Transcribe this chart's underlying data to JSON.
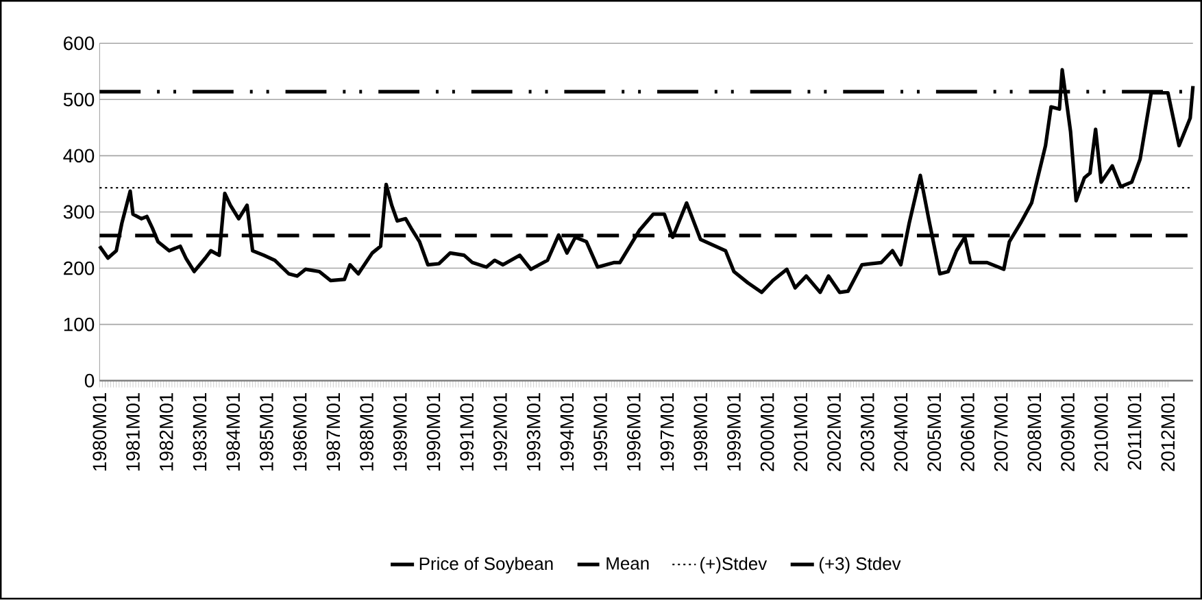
{
  "chart_data": {
    "type": "line",
    "x": [
      "1980-01",
      "1980-04",
      "1980-07",
      "1980-09",
      "1980-12",
      "1981-01",
      "1981-04",
      "1981-06",
      "1981-08",
      "1981-10",
      "1982-02",
      "1982-06",
      "1982-08",
      "1982-11",
      "1983-03",
      "1983-05",
      "1983-08",
      "1983-10",
      "1983-12",
      "1984-03",
      "1984-06",
      "1984-08",
      "1984-12",
      "1985-04",
      "1985-09",
      "1985-12",
      "1986-03",
      "1986-08",
      "1986-12",
      "1987-05",
      "1987-07",
      "1987-10",
      "1988-03",
      "1988-06",
      "1988-08",
      "1988-10",
      "1988-12",
      "1989-03",
      "1989-05",
      "1989-08",
      "1989-11",
      "1990-03",
      "1990-07",
      "1990-12",
      "1991-03",
      "1991-08",
      "1991-11",
      "1992-02",
      "1992-08",
      "1992-12",
      "1993-06",
      "1993-10",
      "1994-01",
      "1994-04",
      "1994-08",
      "1994-12",
      "1995-06",
      "1995-08",
      "1996-03",
      "1996-08",
      "1996-12",
      "1997-03",
      "1997-08",
      "1998-01",
      "1998-10",
      "1999-01",
      "1999-06",
      "1999-11",
      "2000-03",
      "2000-08",
      "2000-11",
      "2001-03",
      "2001-08",
      "2001-11",
      "2002-03",
      "2002-06",
      "2002-11",
      "2003-06",
      "2003-10",
      "2004-01",
      "2004-04",
      "2004-08",
      "2004-11",
      "2005-03",
      "2005-06",
      "2005-09",
      "2005-12",
      "2006-02",
      "2006-08",
      "2007-02",
      "2007-04",
      "2007-08",
      "2007-12",
      "2008-05",
      "2008-07",
      "2008-10",
      "2008-11",
      "2009-02",
      "2009-04",
      "2009-07",
      "2009-09",
      "2009-11",
      "2010-01",
      "2010-05",
      "2010-08",
      "2010-12",
      "2011-03",
      "2011-07",
      "2012-01",
      "2012-05",
      "2012-09",
      "2012-10"
    ],
    "series": [
      {
        "name": "Price of Soybean",
        "color": "#000000",
        "line_style": "solid",
        "values": [
          239,
          218,
          231,
          280,
          337,
          296,
          288,
          292,
          271,
          247,
          231,
          239,
          218,
          194,
          218,
          231,
          223,
          333,
          312,
          288,
          312,
          231,
          223,
          214,
          190,
          186,
          198,
          194,
          178,
          180,
          206,
          190,
          227,
          239,
          349,
          312,
          284,
          288,
          271,
          247,
          206,
          208,
          227,
          223,
          210,
          202,
          214,
          206,
          223,
          198,
          214,
          259,
          227,
          255,
          247,
          202,
          210,
          210,
          267,
          296,
          296,
          255,
          316,
          251,
          231,
          194,
          174,
          157,
          178,
          198,
          165,
          186,
          157,
          186,
          157,
          159,
          206,
          210,
          231,
          206,
          280,
          365,
          288,
          190,
          194,
          231,
          255,
          210,
          210,
          198,
          247,
          280,
          316,
          418,
          487,
          483,
          553,
          443,
          320,
          361,
          369,
          447,
          353,
          382,
          345,
          353,
          394,
          512,
          512,
          418,
          467,
          524
        ]
      },
      {
        "name": "Mean",
        "color": "#000000",
        "line_style": "dashed",
        "x": [
          "1980-01",
          "2012-10"
        ],
        "values": [
          258,
          258
        ]
      },
      {
        "name": "(+)Stdev",
        "color": "#000000",
        "line_style": "dotted",
        "x": [
          "1980-01",
          "2012-10"
        ],
        "values": [
          343,
          343
        ]
      },
      {
        "name": "(+3) Stdev",
        "color": "#000000",
        "line_style": "dashdotdotted",
        "x": [
          "1980-01",
          "2012-10"
        ],
        "values": [
          514,
          514
        ]
      }
    ],
    "xlim": [
      "1980-01",
      "2012-10"
    ],
    "xticks": [
      {
        "value": "1980-01",
        "label": "1980M01"
      },
      {
        "value": "1981-01",
        "label": "1981M01"
      },
      {
        "value": "1982-01",
        "label": "1982M01"
      },
      {
        "value": "1983-01",
        "label": "1983M01"
      },
      {
        "value": "1984-01",
        "label": "1984M01"
      },
      {
        "value": "1985-01",
        "label": "1985M01"
      },
      {
        "value": "1986-01",
        "label": "1986M01"
      },
      {
        "value": "1987-01",
        "label": "1987M01"
      },
      {
        "value": "1988-01",
        "label": "1988M01"
      },
      {
        "value": "1989-01",
        "label": "1989M01"
      },
      {
        "value": "1990-01",
        "label": "1990M01"
      },
      {
        "value": "1991-01",
        "label": "1991M01"
      },
      {
        "value": "1992-01",
        "label": "1992M01"
      },
      {
        "value": "1993-01",
        "label": "1993M01"
      },
      {
        "value": "1994-01",
        "label": "1994M01"
      },
      {
        "value": "1995-01",
        "label": "1995M01"
      },
      {
        "value": "1996-01",
        "label": "1996M01"
      },
      {
        "value": "1997-01",
        "label": "1997M01"
      },
      {
        "value": "1998-01",
        "label": "1998M01"
      },
      {
        "value": "1999-01",
        "label": "1999M01"
      },
      {
        "value": "2000-01",
        "label": "2000M01"
      },
      {
        "value": "2001-01",
        "label": "2001M01"
      },
      {
        "value": "2002-01",
        "label": "2002M01"
      },
      {
        "value": "2003-01",
        "label": "2003M01"
      },
      {
        "value": "2004-01",
        "label": "2004M01"
      },
      {
        "value": "2005-01",
        "label": "2005M01"
      },
      {
        "value": "2006-01",
        "label": "2006M01"
      },
      {
        "value": "2007-01",
        "label": "2007M01"
      },
      {
        "value": "2008-01",
        "label": "2008M01"
      },
      {
        "value": "2009-01",
        "label": "2009M01"
      },
      {
        "value": "2010-01",
        "label": "2010M01"
      },
      {
        "value": "2011-01",
        "label": "2011M01"
      },
      {
        "value": "2012-01",
        "label": "2012M01"
      }
    ],
    "ylim": [
      0,
      600
    ],
    "yticks": [
      0,
      100,
      200,
      300,
      400,
      500,
      600
    ],
    "grid": "y",
    "legend": "bottom",
    "marker": "none"
  }
}
